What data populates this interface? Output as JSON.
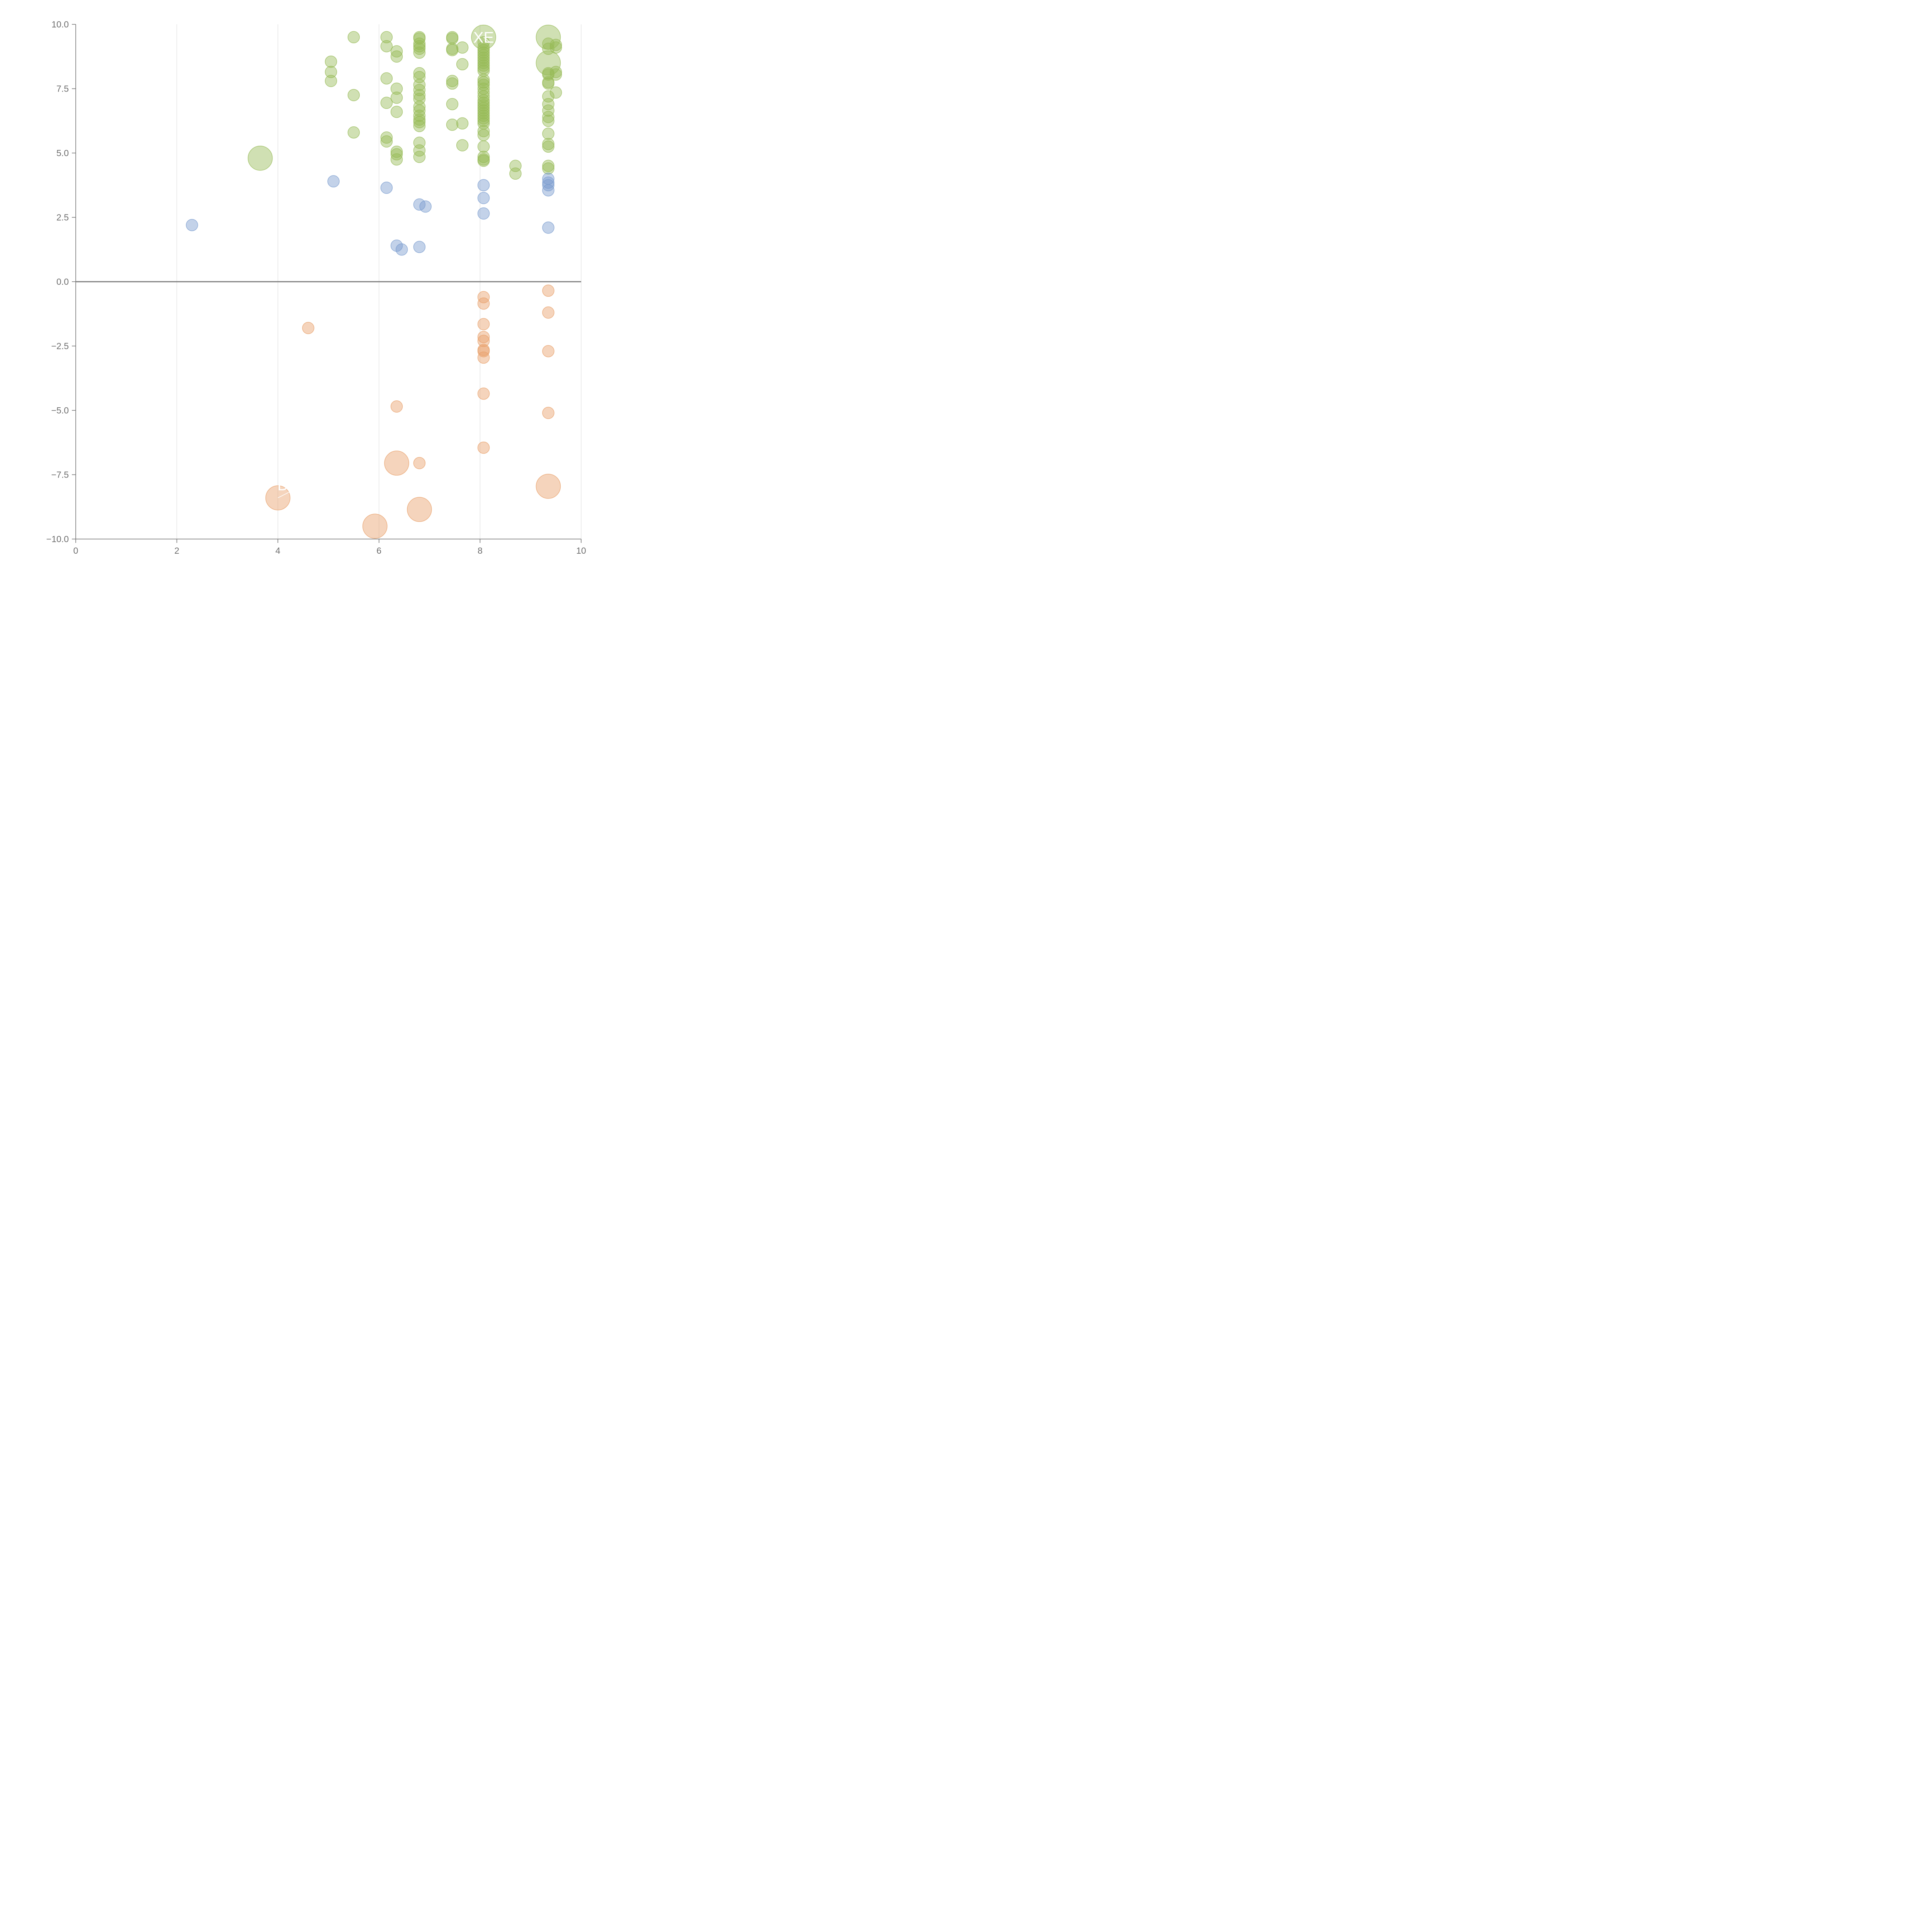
{
  "chart_data": {
    "type": "scatter",
    "title": "",
    "xlabel": "",
    "ylabel": "",
    "xlim": [
      0,
      10
    ],
    "ylim": [
      -10,
      10
    ],
    "x_ticks": [
      0,
      2,
      4,
      6,
      8,
      10
    ],
    "y_ticks": [
      -10,
      -7.5,
      -5,
      -2.5,
      0,
      2.5,
      5,
      7.5,
      10
    ],
    "x_tick_labels": [
      "0",
      "2",
      "4",
      "6",
      "8",
      "10"
    ],
    "y_tick_labels": [
      "−10.0",
      "−7.5",
      "−5.0",
      "−2.5",
      "0.0",
      "2.5",
      "5.0",
      "7.5",
      "10.0"
    ],
    "vertical_grid": true,
    "horizontal_grid": false,
    "zero_line": true,
    "legend": "none",
    "colors": {
      "positive_high": "#97bb57",
      "positive_low": "#7a9ccf",
      "negative": "#e8a06a",
      "axis": "#6e6e6e",
      "grid": "#d9d9d9",
      "zero_line": "#7f7f7f",
      "label": "#ffffff"
    },
    "series": [
      {
        "color_key": "positive_high",
        "points": [
          [
            5.5,
            9.5,
            1
          ],
          [
            6.15,
            9.5,
            1
          ],
          [
            6.15,
            9.15,
            1
          ],
          [
            6.35,
            8.95,
            1
          ],
          [
            6.35,
            8.75,
            1
          ],
          [
            6.8,
            9.5,
            1
          ],
          [
            6.8,
            9.45,
            1
          ],
          [
            6.8,
            9.25,
            1
          ],
          [
            6.8,
            9.15,
            1
          ],
          [
            6.8,
            9.05,
            1
          ],
          [
            6.8,
            8.9,
            1
          ],
          [
            7.45,
            9.5,
            1
          ],
          [
            7.45,
            9.45,
            1
          ],
          [
            7.45,
            9.05,
            1
          ],
          [
            7.45,
            9.0,
            1
          ],
          [
            7.65,
            9.1,
            1
          ],
          [
            7.65,
            8.45,
            1
          ],
          [
            5.05,
            8.55,
            1
          ],
          [
            5.05,
            8.15,
            1
          ],
          [
            5.05,
            7.8,
            1
          ],
          [
            6.15,
            7.9,
            1
          ],
          [
            6.35,
            7.5,
            1
          ],
          [
            6.35,
            7.15,
            1
          ],
          [
            6.15,
            6.95,
            1
          ],
          [
            6.35,
            6.6,
            1
          ],
          [
            5.5,
            7.25,
            1
          ],
          [
            6.8,
            8.1,
            1
          ],
          [
            6.8,
            7.95,
            1
          ],
          [
            6.8,
            7.65,
            1
          ],
          [
            6.8,
            7.45,
            1
          ],
          [
            6.8,
            7.25,
            1
          ],
          [
            6.8,
            7.1,
            1
          ],
          [
            6.8,
            6.8,
            1
          ],
          [
            6.8,
            6.65,
            1
          ],
          [
            6.8,
            6.45,
            1
          ],
          [
            6.8,
            6.3,
            1
          ],
          [
            6.8,
            6.2,
            1
          ],
          [
            6.8,
            6.05,
            1
          ],
          [
            7.45,
            7.8,
            1
          ],
          [
            7.45,
            7.7,
            1
          ],
          [
            7.45,
            6.9,
            1
          ],
          [
            7.45,
            6.1,
            1
          ],
          [
            7.65,
            6.15,
            1
          ],
          [
            7.65,
            5.3,
            1
          ],
          [
            5.5,
            5.8,
            1
          ],
          [
            6.15,
            5.6,
            1
          ],
          [
            6.15,
            5.45,
            1
          ],
          [
            6.35,
            5.05,
            1
          ],
          [
            6.35,
            4.95,
            1
          ],
          [
            6.35,
            4.75,
            1
          ],
          [
            6.8,
            5.4,
            1
          ],
          [
            6.8,
            5.1,
            1
          ],
          [
            6.8,
            4.85,
            1
          ],
          [
            8.07,
            9.3,
            1
          ],
          [
            8.07,
            9.1,
            1
          ],
          [
            8.07,
            9.0,
            1
          ],
          [
            8.07,
            8.9,
            1
          ],
          [
            8.07,
            8.8,
            1
          ],
          [
            8.07,
            8.7,
            1
          ],
          [
            8.07,
            8.6,
            1
          ],
          [
            8.07,
            8.5,
            1
          ],
          [
            8.07,
            8.4,
            1
          ],
          [
            8.07,
            8.3,
            1
          ],
          [
            8.07,
            8.2,
            1
          ],
          [
            8.07,
            7.85,
            1
          ],
          [
            8.07,
            7.75,
            1
          ],
          [
            8.07,
            7.65,
            1
          ],
          [
            8.07,
            7.5,
            1
          ],
          [
            8.07,
            7.35,
            1
          ],
          [
            8.07,
            7.2,
            1
          ],
          [
            8.07,
            7.05,
            1
          ],
          [
            8.07,
            6.95,
            1
          ],
          [
            8.07,
            6.85,
            1
          ],
          [
            8.07,
            6.75,
            1
          ],
          [
            8.07,
            6.65,
            1
          ],
          [
            8.07,
            6.55,
            1
          ],
          [
            8.07,
            6.45,
            1
          ],
          [
            8.07,
            6.35,
            1
          ],
          [
            8.07,
            6.25,
            1
          ],
          [
            8.07,
            6.15,
            1
          ],
          [
            8.07,
            5.85,
            1
          ],
          [
            8.07,
            5.7,
            1
          ],
          [
            8.07,
            5.25,
            1
          ],
          [
            8.07,
            4.85,
            1
          ],
          [
            8.07,
            4.75,
            1
          ],
          [
            8.07,
            4.7,
            1
          ],
          [
            9.35,
            9.25,
            1
          ],
          [
            9.35,
            9.05,
            1
          ],
          [
            9.5,
            9.2,
            1
          ],
          [
            9.5,
            9.1,
            1
          ],
          [
            9.35,
            8.1,
            1
          ],
          [
            9.35,
            8.05,
            1
          ],
          [
            9.5,
            8.15,
            1
          ],
          [
            9.5,
            8.05,
            1
          ],
          [
            9.35,
            7.75,
            1
          ],
          [
            9.35,
            7.7,
            1
          ],
          [
            9.5,
            7.35,
            1
          ],
          [
            9.35,
            7.2,
            1
          ],
          [
            9.35,
            6.9,
            1
          ],
          [
            9.35,
            6.65,
            1
          ],
          [
            9.35,
            6.4,
            1
          ],
          [
            9.35,
            6.25,
            1
          ],
          [
            9.35,
            5.75,
            1
          ],
          [
            9.35,
            5.35,
            1
          ],
          [
            9.35,
            5.25,
            1
          ],
          [
            9.35,
            4.5,
            1
          ],
          [
            9.35,
            4.4,
            1
          ],
          [
            8.7,
            4.5,
            1
          ],
          [
            8.7,
            4.2,
            1
          ],
          [
            3.65,
            4.8,
            2.1
          ],
          [
            8.07,
            9.5,
            2.1
          ],
          [
            9.35,
            9.5,
            2.1
          ],
          [
            9.35,
            8.5,
            2.1
          ]
        ]
      },
      {
        "color_key": "positive_low",
        "points": [
          [
            2.3,
            2.2,
            1
          ],
          [
            5.1,
            3.9,
            1
          ],
          [
            6.15,
            3.65,
            1
          ],
          [
            6.8,
            3.0,
            1
          ],
          [
            6.92,
            2.92,
            1
          ],
          [
            6.35,
            1.4,
            1
          ],
          [
            6.45,
            1.25,
            1
          ],
          [
            6.8,
            1.35,
            1
          ],
          [
            8.07,
            3.75,
            1
          ],
          [
            8.07,
            3.25,
            1
          ],
          [
            8.07,
            2.65,
            1
          ],
          [
            9.35,
            4.0,
            1
          ],
          [
            9.35,
            3.85,
            1
          ],
          [
            9.35,
            3.75,
            1
          ],
          [
            9.35,
            3.55,
            1
          ],
          [
            9.35,
            2.1,
            1
          ]
        ]
      },
      {
        "color_key": "negative",
        "points": [
          [
            4.6,
            -1.8,
            1
          ],
          [
            6.35,
            -4.85,
            1
          ],
          [
            6.8,
            -7.05,
            1
          ],
          [
            8.07,
            -0.6,
            1
          ],
          [
            8.07,
            -0.85,
            1
          ],
          [
            8.07,
            -1.65,
            1
          ],
          [
            8.07,
            -2.15,
            1
          ],
          [
            8.07,
            -2.3,
            1
          ],
          [
            8.07,
            -2.65,
            1
          ],
          [
            8.07,
            -2.7,
            1
          ],
          [
            8.07,
            -2.95,
            1
          ],
          [
            8.07,
            -4.35,
            1
          ],
          [
            8.07,
            -6.45,
            1
          ],
          [
            9.35,
            -0.35,
            1
          ],
          [
            9.35,
            -1.2,
            1
          ],
          [
            9.35,
            -2.7,
            1
          ],
          [
            9.35,
            -5.1,
            1
          ],
          [
            4.0,
            -8.4,
            2.1
          ],
          [
            5.92,
            -9.5,
            2.1
          ],
          [
            6.35,
            -7.05,
            2.1
          ],
          [
            6.8,
            -8.85,
            2.1
          ],
          [
            9.35,
            -7.95,
            2.1
          ]
        ]
      }
    ],
    "point_labels": [
      {
        "text": "XE",
        "x": 8.07,
        "y": 9.5,
        "leader": [
          8.07,
          9.5,
          8.2,
          9.3
        ]
      },
      {
        "text": "D",
        "x": 4.1,
        "y": -7.9,
        "leader": [
          4.0,
          -8.4,
          4.25,
          -8.15
        ]
      }
    ]
  }
}
